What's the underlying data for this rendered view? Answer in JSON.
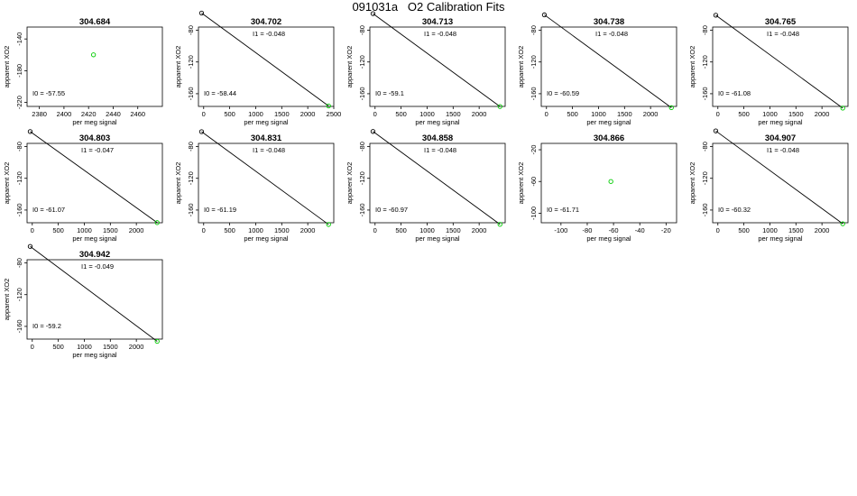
{
  "figure_title": "091031a   O2 Calibration Fits",
  "colors": {
    "point_first": "#000000",
    "point": "#00cc00",
    "fit_line": "#000000"
  },
  "chart_data": [
    {
      "type": "scatter",
      "title": "304.684",
      "xlabel": "per meg signal",
      "ylabel": "apparent XO2",
      "xlim": [
        2370,
        2480
      ],
      "ylim": [
        -225,
        -125
      ],
      "xticks": [
        2380,
        2400,
        2420,
        2440,
        2460
      ],
      "yticks": [
        -140,
        -180,
        -220
      ],
      "points": [
        [
          2424,
          -160
        ]
      ],
      "fit": null,
      "i0_label": "I0 =",
      "i0": "-57.55",
      "i1_label": null,
      "i1": null
    },
    {
      "type": "scatter",
      "title": "304.702",
      "xlabel": "per meg signal",
      "ylabel": "apparent XO2",
      "xlim": [
        -100,
        2500
      ],
      "ylim": [
        -176,
        -76
      ],
      "xticks": [
        0,
        500,
        1000,
        1500,
        2000,
        2500
      ],
      "yticks": [
        -80,
        -120,
        -160
      ],
      "points": [
        [
          -40,
          -58.4
        ],
        [
          2400,
          -175.4
        ]
      ],
      "fit": [
        [
          -40,
          -58.4
        ],
        [
          2400,
          -175.4
        ]
      ],
      "i0_label": "I0 =",
      "i0": "-58.44",
      "i1_label": "I1 =",
      "i1": "-0.048"
    },
    {
      "type": "scatter",
      "title": "304.713",
      "xlabel": "per meg signal",
      "ylabel": "apparent XO2",
      "xlim": [
        -100,
        2500
      ],
      "ylim": [
        -176,
        -76
      ],
      "xticks": [
        0,
        500,
        1000,
        1500,
        2000
      ],
      "yticks": [
        -80,
        -120,
        -160
      ],
      "points": [
        [
          -40,
          -59.1
        ],
        [
          2400,
          -176.1
        ]
      ],
      "fit": [
        [
          -40,
          -59.1
        ],
        [
          2400,
          -176.1
        ]
      ],
      "i0_label": "I0 =",
      "i0": "-59.1",
      "i1_label": "I1 =",
      "i1": "-0.048"
    },
    {
      "type": "scatter",
      "title": "304.738",
      "xlabel": "per meg signal",
      "ylabel": "apparent XO2",
      "xlim": [
        -100,
        2500
      ],
      "ylim": [
        -176,
        -76
      ],
      "xticks": [
        0,
        500,
        1000,
        1500,
        2000
      ],
      "yticks": [
        -80,
        -120,
        -160
      ],
      "points": [
        [
          -40,
          -60.6
        ],
        [
          2400,
          -177.6
        ]
      ],
      "fit": [
        [
          -40,
          -60.6
        ],
        [
          2400,
          -177.6
        ]
      ],
      "i0_label": "I0 =",
      "i0": "-60.59",
      "i1_label": "I1 =",
      "i1": "-0.048"
    },
    {
      "type": "scatter",
      "title": "304.765",
      "xlabel": "per meg signal",
      "ylabel": "apparent XO2",
      "xlim": [
        -100,
        2500
      ],
      "ylim": [
        -176,
        -76
      ],
      "xticks": [
        0,
        500,
        1000,
        1500,
        2000
      ],
      "yticks": [
        -80,
        -120,
        -160
      ],
      "points": [
        [
          -40,
          -61.1
        ],
        [
          2400,
          -178.1
        ]
      ],
      "fit": [
        [
          -40,
          -61.1
        ],
        [
          2400,
          -178.1
        ]
      ],
      "i0_label": "I0 =",
      "i0": "-61.08",
      "i1_label": "I1 =",
      "i1": "-0.048"
    },
    {
      "type": "scatter",
      "title": "304.803",
      "xlabel": "per meg signal",
      "ylabel": "apparent XO2",
      "xlim": [
        -100,
        2500
      ],
      "ylim": [
        -176,
        -76
      ],
      "xticks": [
        0,
        500,
        1000,
        1500,
        2000
      ],
      "yticks": [
        -80,
        -120,
        -160
      ],
      "points": [
        [
          -40,
          -61.1
        ],
        [
          2400,
          -175.8
        ]
      ],
      "fit": [
        [
          -40,
          -61.1
        ],
        [
          2400,
          -175.8
        ]
      ],
      "i0_label": "I0 =",
      "i0": "-61.07",
      "i1_label": "I1 =",
      "i1": "-0.047"
    },
    {
      "type": "scatter",
      "title": "304.831",
      "xlabel": "per meg signal",
      "ylabel": "apparent XO2",
      "xlim": [
        -100,
        2500
      ],
      "ylim": [
        -176,
        -76
      ],
      "xticks": [
        0,
        500,
        1000,
        1500,
        2000
      ],
      "yticks": [
        -80,
        -120,
        -160
      ],
      "points": [
        [
          -40,
          -61.2
        ],
        [
          2400,
          -178.2
        ]
      ],
      "fit": [
        [
          -40,
          -61.2
        ],
        [
          2400,
          -178.2
        ]
      ],
      "i0_label": "I0 =",
      "i0": "-61.19",
      "i1_label": "I1 =",
      "i1": "-0.048"
    },
    {
      "type": "scatter",
      "title": "304.858",
      "xlabel": "per meg signal",
      "ylabel": "apparent XO2",
      "xlim": [
        -100,
        2500
      ],
      "ylim": [
        -176,
        -76
      ],
      "xticks": [
        0,
        500,
        1000,
        1500,
        2000
      ],
      "yticks": [
        -80,
        -120,
        -160
      ],
      "points": [
        [
          -40,
          -61.0
        ],
        [
          2400,
          -178.0
        ]
      ],
      "fit": [
        [
          -40,
          -61.0
        ],
        [
          2400,
          -178.0
        ]
      ],
      "i0_label": "I0 =",
      "i0": "-60.97",
      "i1_label": "I1 =",
      "i1": "-0.048"
    },
    {
      "type": "scatter",
      "title": "304.866",
      "xlabel": "per meg signal",
      "ylabel": "apparent XO2",
      "xlim": [
        -115,
        -12
      ],
      "ylim": [
        -112,
        -12
      ],
      "xticks": [
        -100,
        -80,
        -60,
        -40,
        -20
      ],
      "yticks": [
        -20,
        -60,
        -100
      ],
      "points": [
        [
          -62,
          -60
        ]
      ],
      "fit": null,
      "i0_label": "I0 =",
      "i0": "-61.71",
      "i1_label": null,
      "i1": null
    },
    {
      "type": "scatter",
      "title": "304.907",
      "xlabel": "per meg signal",
      "ylabel": "apparent XO2",
      "xlim": [
        -100,
        2500
      ],
      "ylim": [
        -176,
        -76
      ],
      "xticks": [
        0,
        500,
        1000,
        1500,
        2000
      ],
      "yticks": [
        -80,
        -120,
        -160
      ],
      "points": [
        [
          -40,
          -60.3
        ],
        [
          2400,
          -177.3
        ]
      ],
      "fit": [
        [
          -40,
          -60.3
        ],
        [
          2400,
          -177.3
        ]
      ],
      "i0_label": "I0 =",
      "i0": "-60.32",
      "i1_label": "I1 =",
      "i1": "-0.048"
    },
    {
      "type": "scatter",
      "title": "304.942",
      "xlabel": "per meg signal",
      "ylabel": "apparent XO2",
      "xlim": [
        -100,
        2500
      ],
      "ylim": [
        -176,
        -76
      ],
      "xticks": [
        0,
        500,
        1000,
        1500,
        2000
      ],
      "yticks": [
        -80,
        -120,
        -160
      ],
      "points": [
        [
          -40,
          -59.2
        ],
        [
          2400,
          -178.8
        ]
      ],
      "fit": [
        [
          -40,
          -59.2
        ],
        [
          2400,
          -178.8
        ]
      ],
      "i0_label": "I0 =",
      "i0": "-59.2",
      "i1_label": "I1 =",
      "i1": "-0.049"
    }
  ]
}
